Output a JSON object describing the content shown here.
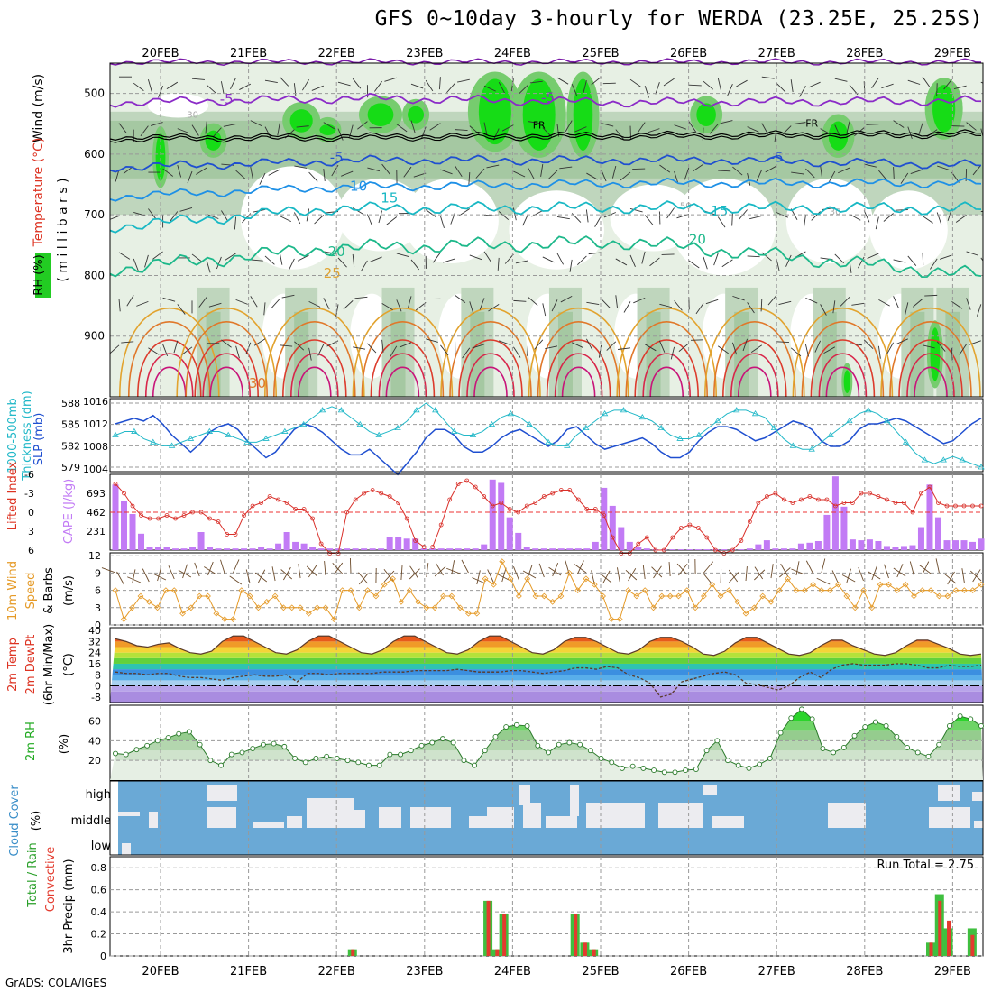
{
  "title": "GFS 0~10day 3-hourly for WERDA (23.25E, 25.25S)",
  "credit": "GrADS: COLA/IGES",
  "days": [
    "20FEB",
    "21FEB",
    "22FEB",
    "23FEB",
    "24FEB",
    "25FEB",
    "26FEB",
    "27FEB",
    "28FEB",
    "29FEB"
  ],
  "colors": {
    "rh_green": "#22cc22",
    "temp_blue": "#1f4fd0",
    "temp_orange": "#e09a2a",
    "temp_red": "#dc2a3a",
    "cape_purple": "#c27bf5",
    "cloud_blue": "#6aa9d6",
    "precip_green": "#3fbf3f",
    "precip_red": "#e33b2e"
  },
  "chart_data": [
    {
      "type": "heatmap",
      "panel": "pressure-profile",
      "ylabel_parts": [
        "RH (%)",
        "Temperature (°C)",
        "Wind (m/s)"
      ],
      "yunit": "( m i l l i b a r s )",
      "yticks": [
        500,
        600,
        700,
        800,
        900
      ],
      "ylim": [
        450,
        1000
      ],
      "contour_labels": [
        {
          "text": "-5",
          "day": 0.75,
          "p": 517
        },
        {
          "text": "-5",
          "day": 4.4,
          "p": 515
        },
        {
          "text": "FR",
          "day": 4.3,
          "p": 558
        },
        {
          "text": "FR",
          "day": 7.4,
          "p": 555
        },
        {
          "text": "-5",
          "day": 2.0,
          "p": 613
        },
        {
          "text": "-5",
          "day": 7.0,
          "p": 613
        },
        {
          "text": "10",
          "day": 2.25,
          "p": 660
        },
        {
          "text": "15",
          "day": 2.6,
          "p": 680
        },
        {
          "text": "15",
          "day": 6.35,
          "p": 701
        },
        {
          "text": "20",
          "day": 2.0,
          "p": 768
        },
        {
          "text": "20",
          "day": 6.1,
          "p": 748
        },
        {
          "text": "25",
          "day": 1.95,
          "p": 804
        },
        {
          "text": "30",
          "day": 1.1,
          "p": 985
        }
      ],
      "rh_labels": [
        "30",
        "30",
        "50"
      ]
    },
    {
      "type": "line",
      "panel": "thickness-slp",
      "ylabel_left": "1000-500mb Thickness (dm)",
      "ylabel_right": "SLP (mb)",
      "yticks_left": [
        579,
        582,
        585,
        588
      ],
      "yticks_right": [
        1004,
        1008,
        1012,
        1016
      ],
      "series": [
        {
          "name": "SLP (mb)",
          "values": [
            1012,
            1012.5,
            1013,
            1012.5,
            1013.5,
            1012,
            1010,
            1008.5,
            1007,
            1008.5,
            1010.5,
            1011.5,
            1012,
            1011,
            1009,
            1007.5,
            1006,
            1007,
            1009,
            1011,
            1012,
            1011.5,
            1010.5,
            1009,
            1007.5,
            1006.5,
            1006.5,
            1007.5,
            1006,
            1004.5,
            1003,
            1005,
            1007,
            1009.5,
            1011,
            1011,
            1010,
            1008,
            1007,
            1007,
            1008,
            1009.5,
            1010.5,
            1011,
            1010,
            1009,
            1008,
            1009,
            1011,
            1011.5,
            1010,
            1008.5,
            1007.5,
            1008,
            1008.5,
            1009,
            1009.5,
            1008.5,
            1007,
            1006,
            1006,
            1007,
            1009,
            1010.5,
            1011.5,
            1011.5,
            1011,
            1010,
            1009,
            1009.5,
            1010.5,
            1011.5,
            1012.5,
            1012,
            1011,
            1009,
            1008,
            1008,
            1009,
            1011,
            1012,
            1012,
            1012.5,
            1013,
            1012.5,
            1011.5,
            1010.5,
            1009.5,
            1008.5,
            1009,
            1010.5,
            1012,
            1013
          ]
        },
        {
          "name": "1000-500mb Thickness (dm)",
          "values": [
            583.5,
            584,
            584,
            583,
            582.5,
            582,
            582,
            582.5,
            583,
            583.5,
            584,
            584,
            583.5,
            583,
            582.5,
            582.5,
            583,
            583.5,
            584,
            584.5,
            585,
            586,
            587,
            587.5,
            587,
            586,
            585,
            584,
            583.5,
            584,
            584.5,
            585.5,
            587,
            588,
            587,
            585.5,
            584,
            583.5,
            583.5,
            584,
            585,
            586,
            586.5,
            586,
            585,
            584,
            582.5,
            582,
            582,
            583.5,
            584.5,
            585.5,
            586.5,
            587,
            587,
            586.5,
            586,
            585.5,
            584.5,
            583.5,
            583,
            583,
            583.5,
            584.5,
            585.5,
            586.5,
            587,
            587,
            586.5,
            586,
            584.5,
            583,
            582,
            581.5,
            581.5,
            582.5,
            583.5,
            584.5,
            585.5,
            586.5,
            587,
            586.5,
            585.5,
            584,
            582.5,
            581,
            580,
            579.5,
            580,
            580.5,
            580,
            579.5,
            579
          ]
        }
      ]
    },
    {
      "type": "bar",
      "panel": "lifted-cape",
      "ylabel_left": "Lifted Index",
      "ylabel_right": "CAPE (J/kg)",
      "yticks_left": [
        -6,
        -3,
        0,
        3,
        6
      ],
      "yticks_right": [
        231,
        462,
        693
      ],
      "series": [
        {
          "name": "CAPE (J/kg)",
          "values": [
            800,
            600,
            440,
            200,
            40,
            40,
            40,
            20,
            20,
            40,
            220,
            40,
            20,
            20,
            20,
            20,
            20,
            40,
            20,
            80,
            220,
            100,
            80,
            40,
            20,
            20,
            20,
            20,
            20,
            20,
            20,
            20,
            160,
            160,
            140,
            140,
            20,
            20,
            20,
            20,
            20,
            20,
            20,
            70,
            860,
            820,
            400,
            210,
            40,
            20,
            20,
            20,
            20,
            20,
            20,
            20,
            100,
            760,
            540,
            280,
            100,
            40,
            20,
            10,
            10,
            10,
            10,
            10,
            10,
            10,
            10,
            10,
            10,
            10,
            20,
            70,
            120,
            20,
            20,
            20,
            80,
            90,
            110,
            430,
            900,
            530,
            130,
            120,
            130,
            110,
            50,
            40,
            50,
            60,
            280,
            800,
            400,
            120,
            120,
            120,
            100,
            140
          ]
        },
        {
          "name": "Lifted Index",
          "values": [
            -4.5,
            -3,
            -1,
            0.5,
            1,
            1,
            0.5,
            1,
            0.5,
            0,
            0,
            1,
            1.5,
            3.5,
            3.5,
            0.5,
            -1,
            -1.5,
            -2.5,
            -2,
            -1.5,
            -0.5,
            -0.5,
            1,
            5,
            6.5,
            6.5,
            0,
            -2,
            -3,
            -3.5,
            -3,
            -2.5,
            -1.5,
            1,
            4.5,
            5.5,
            5.5,
            2,
            -2,
            -4.5,
            -5,
            -4,
            -2.5,
            -1,
            -1.5,
            -0.5,
            0,
            -1,
            -1.5,
            -2.5,
            -3,
            -3.5,
            -3.5,
            -2,
            -0.5,
            -0.5,
            0.5,
            4,
            6.5,
            6.5,
            5,
            4,
            6,
            6,
            4,
            2.5,
            2,
            2.5,
            4,
            6,
            6.5,
            6,
            4.5,
            1.5,
            -1.5,
            -2.5,
            -3,
            -2,
            -1.5,
            -2,
            -2.5,
            -2,
            -2,
            -1,
            -1.5,
            -1.5,
            -3,
            -3,
            -2.5,
            -2,
            -1.5,
            -1.5,
            0,
            -3,
            -4,
            -1.5,
            -1,
            -1,
            -1,
            -1,
            -1
          ]
        }
      ]
    },
    {
      "type": "line",
      "panel": "wind10m",
      "ylabel": "10m Wind Speed & Barbs (m/s)",
      "yticks": [
        0,
        3,
        6,
        9,
        12
      ],
      "series": [
        {
          "name": "10m Wind Speed",
          "values": [
            6,
            1,
            3,
            5,
            4,
            3,
            6,
            6,
            2,
            3,
            5,
            5,
            2,
            1,
            1,
            6,
            5,
            3,
            4,
            5,
            3,
            3,
            3,
            2,
            3,
            3,
            1,
            6,
            6,
            3,
            6,
            5,
            7,
            8,
            4,
            6,
            4,
            3,
            3,
            5,
            5,
            3,
            2,
            2,
            8,
            7,
            11,
            8,
            5,
            8,
            5,
            5,
            4,
            5,
            9,
            6,
            8,
            7,
            5,
            1,
            1,
            6,
            5,
            6,
            3,
            5,
            5,
            5,
            6,
            3,
            5,
            7,
            5,
            6,
            4,
            2,
            3,
            5,
            4,
            6,
            8,
            6,
            6,
            7,
            6,
            6,
            7,
            5,
            3,
            6,
            3,
            7,
            7,
            6,
            7,
            5,
            6,
            6,
            5,
            5,
            6,
            6,
            6,
            7
          ]
        }
      ]
    },
    {
      "type": "area",
      "panel": "temp2m",
      "ylabel": "2m Temp 2m DewPt (6hr Min/Max) (°C)",
      "yticks": [
        -8,
        0,
        8,
        16,
        24,
        32,
        40
      ],
      "series": [
        {
          "name": "2m Temp",
          "values": [
            34,
            32,
            29,
            28,
            30,
            31,
            27,
            24,
            23,
            25,
            32,
            36,
            36,
            32,
            28,
            24,
            23,
            26,
            32,
            36,
            36,
            32,
            28,
            24,
            23,
            26,
            32,
            36,
            36,
            32,
            28,
            24,
            23,
            26,
            32,
            36,
            36,
            32,
            28,
            24,
            23,
            26,
            32,
            35,
            35,
            32,
            28,
            24,
            23,
            26,
            32,
            35,
            35,
            32,
            28,
            23,
            22,
            25,
            31,
            35,
            35,
            31,
            27,
            23,
            22,
            24,
            29,
            33,
            33,
            29,
            26,
            23,
            22,
            24,
            29,
            33,
            33,
            30,
            27,
            23,
            22,
            23
          ]
        },
        {
          "name": "2m DewPt",
          "values": [
            10,
            9,
            9,
            8,
            9,
            9,
            7,
            6,
            6,
            5,
            4,
            6,
            7,
            8,
            7,
            7,
            8,
            3,
            9,
            9,
            8,
            9,
            9,
            9,
            9,
            10,
            10,
            10,
            11,
            11,
            11,
            11,
            12,
            11,
            10,
            10,
            10,
            11,
            11,
            10,
            9,
            10,
            11,
            13,
            13,
            12,
            14,
            13,
            8,
            6,
            2,
            -8,
            -6,
            3,
            5,
            7,
            9,
            10,
            8,
            2,
            1,
            -1,
            -3,
            0,
            6,
            10,
            6,
            12,
            15,
            16,
            15,
            15,
            15,
            16,
            16,
            15,
            13,
            13,
            15,
            14,
            14,
            15
          ]
        }
      ]
    },
    {
      "type": "area",
      "panel": "rh2m",
      "ylabel": "2m RH (%)",
      "yticks": [
        20,
        40,
        60
      ],
      "series": [
        {
          "name": "2m RH",
          "values": [
            27,
            26,
            31,
            35,
            40,
            43,
            47,
            49,
            36,
            20,
            15,
            26,
            28,
            32,
            36,
            37,
            34,
            22,
            18,
            22,
            24,
            22,
            20,
            18,
            15,
            15,
            26,
            26,
            30,
            35,
            38,
            42,
            38,
            20,
            15,
            30,
            44,
            54,
            56,
            55,
            35,
            28,
            36,
            38,
            36,
            30,
            22,
            18,
            12,
            14,
            12,
            10,
            8,
            8,
            10,
            11,
            30,
            40,
            20,
            15,
            12,
            16,
            22,
            48,
            63,
            72,
            62,
            32,
            28,
            33,
            45,
            54,
            59,
            55,
            44,
            33,
            28,
            24,
            36,
            55,
            65,
            62,
            55
          ]
        }
      ]
    },
    {
      "type": "heatmap",
      "panel": "cloud",
      "ylabel": "Cloud Cover (%)",
      "rows": [
        "high",
        "middle",
        "low"
      ]
    },
    {
      "type": "bar",
      "panel": "precip",
      "ylabel_parts": [
        "3hr Precip (mm)",
        "Total / Rain",
        "Convective"
      ],
      "yticks": [
        0,
        0.2,
        0.4,
        0.6,
        0.8
      ],
      "annotation": "Run Total = 2.75",
      "series": [
        {
          "name": "Total",
          "points": [
            [
              2.18,
              0.06
            ],
            [
              3.72,
              0.5
            ],
            [
              3.82,
              0.06
            ],
            [
              3.9,
              0.38
            ],
            [
              4.71,
              0.38
            ],
            [
              4.82,
              0.12
            ],
            [
              4.92,
              0.06
            ],
            [
              8.75,
              0.12
            ],
            [
              8.85,
              0.56
            ],
            [
              8.95,
              0.25
            ],
            [
              9.22,
              0.25
            ]
          ]
        },
        {
          "name": "Convective",
          "points": [
            [
              2.18,
              0.06
            ],
            [
              3.72,
              0.5
            ],
            [
              3.82,
              0.06
            ],
            [
              3.9,
              0.38
            ],
            [
              4.71,
              0.38
            ],
            [
              4.82,
              0.12
            ],
            [
              4.92,
              0.06
            ],
            [
              8.75,
              0.12
            ],
            [
              8.85,
              0.5
            ],
            [
              8.95,
              0.32
            ],
            [
              9.22,
              0.19
            ]
          ]
        }
      ]
    }
  ]
}
